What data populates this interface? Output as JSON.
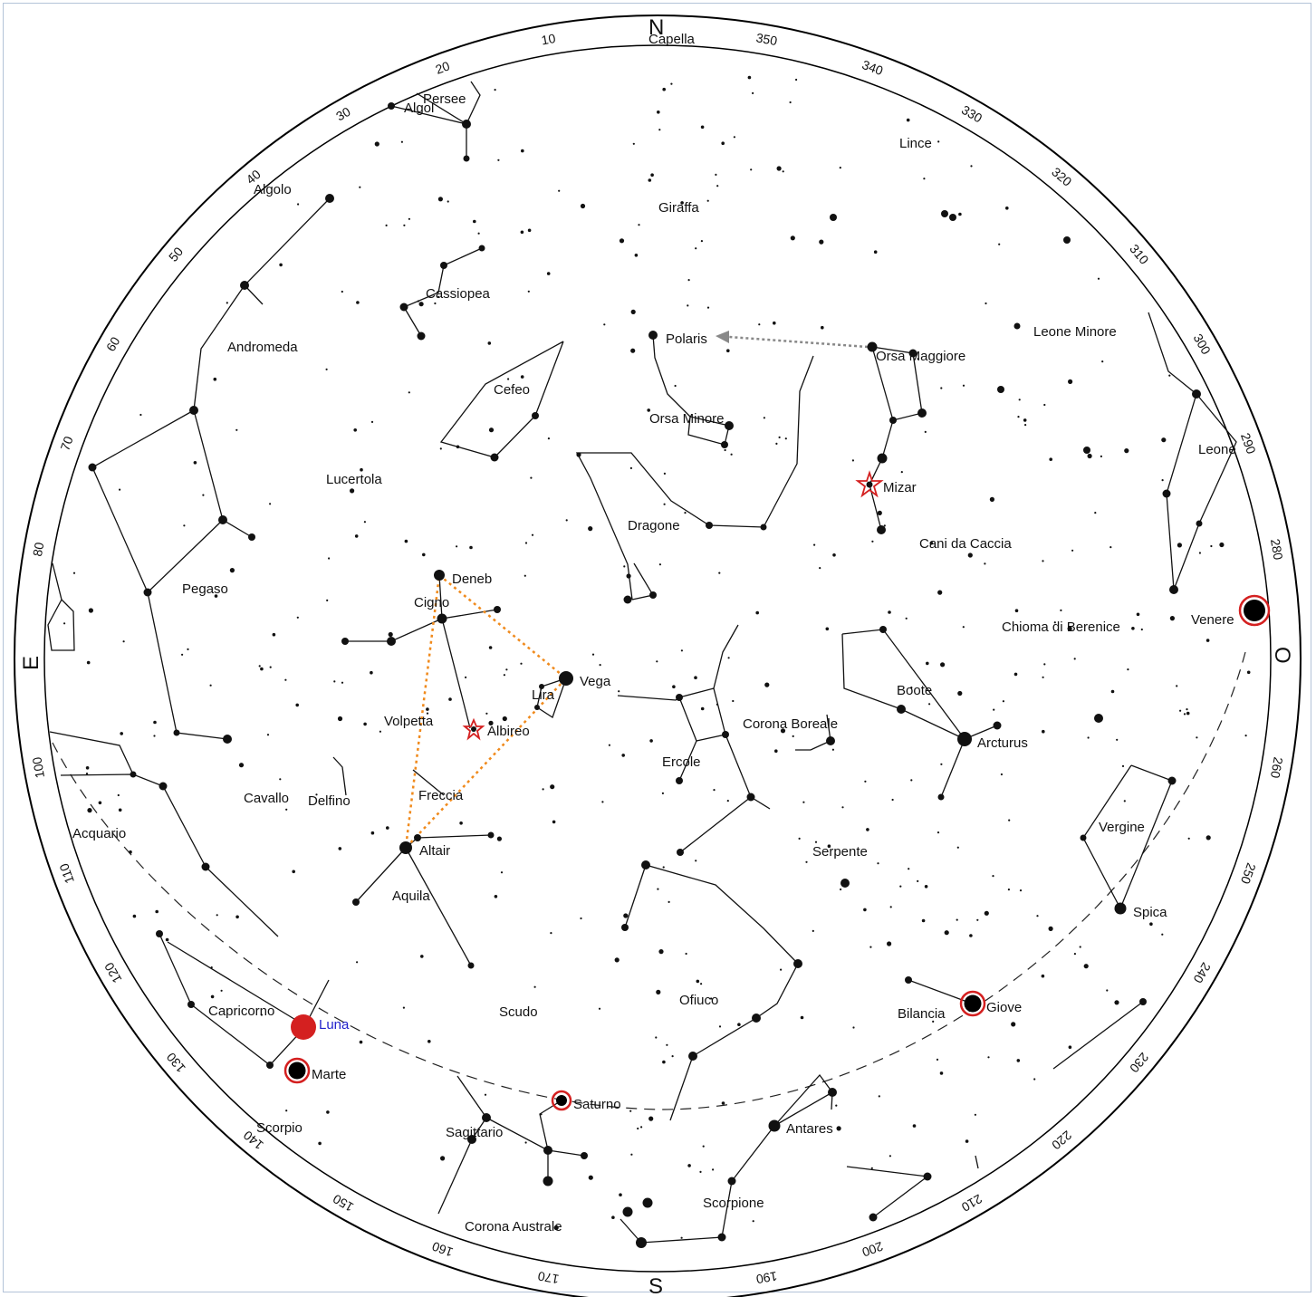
{
  "cardinals": {
    "north": "N",
    "south": "S",
    "east": "E",
    "west": "O"
  },
  "degree_labels": [
    "10",
    "20",
    "30",
    "40",
    "50",
    "60",
    "70",
    "80",
    "100",
    "110",
    "120",
    "130",
    "140",
    "150",
    "160",
    "170",
    "190",
    "200",
    "210",
    "220",
    "230",
    "240",
    "250",
    "260",
    "280",
    "290",
    "300",
    "310",
    "320",
    "330",
    "340",
    "350"
  ],
  "constellations": [
    "Persee",
    "Lince",
    "Giraffa",
    "Cassiopea",
    "Andromeda",
    "Cefeo",
    "Orsa Minore",
    "Orsa Maggiore",
    "Leone Minore",
    "Leone",
    "Lucertola",
    "Dragone",
    "Cani da Caccia",
    "Pegaso",
    "Cigno",
    "Chioma di Berenice",
    "Lira",
    "Boote",
    "Volpetta",
    "Corona Boreale",
    "Ercole",
    "Cavallo",
    "Delfino",
    "Freccia",
    "Vergine",
    "Serpente",
    "Aquila",
    "Capricorno",
    "Scudo",
    "Ofiuco",
    "Bilancia",
    "Sagittario",
    "Scorpione",
    "Corona Australe",
    "Capella",
    "Algolo",
    "Acquario",
    "Scorpio"
  ],
  "stars": [
    "Algol",
    "Polaris",
    "Mizar",
    "Deneb",
    "Vega",
    "Albireo",
    "Altair",
    "Arcturus",
    "Spica",
    "Antares"
  ],
  "planets": [
    "Venere",
    "Giove",
    "Saturno",
    "Marte"
  ],
  "moon": {
    "label": "Luna",
    "color": "#2222cc"
  },
  "colors": {
    "planet_ring": "#d42020",
    "moon_fill": "#d42020",
    "triangle": "#f08a1c",
    "arrow": "#888888"
  },
  "planet_positions_az": {
    "Venere": 278,
    "Giove": 235,
    "Saturno": 168,
    "Marte": 140,
    "Luna": 138
  }
}
